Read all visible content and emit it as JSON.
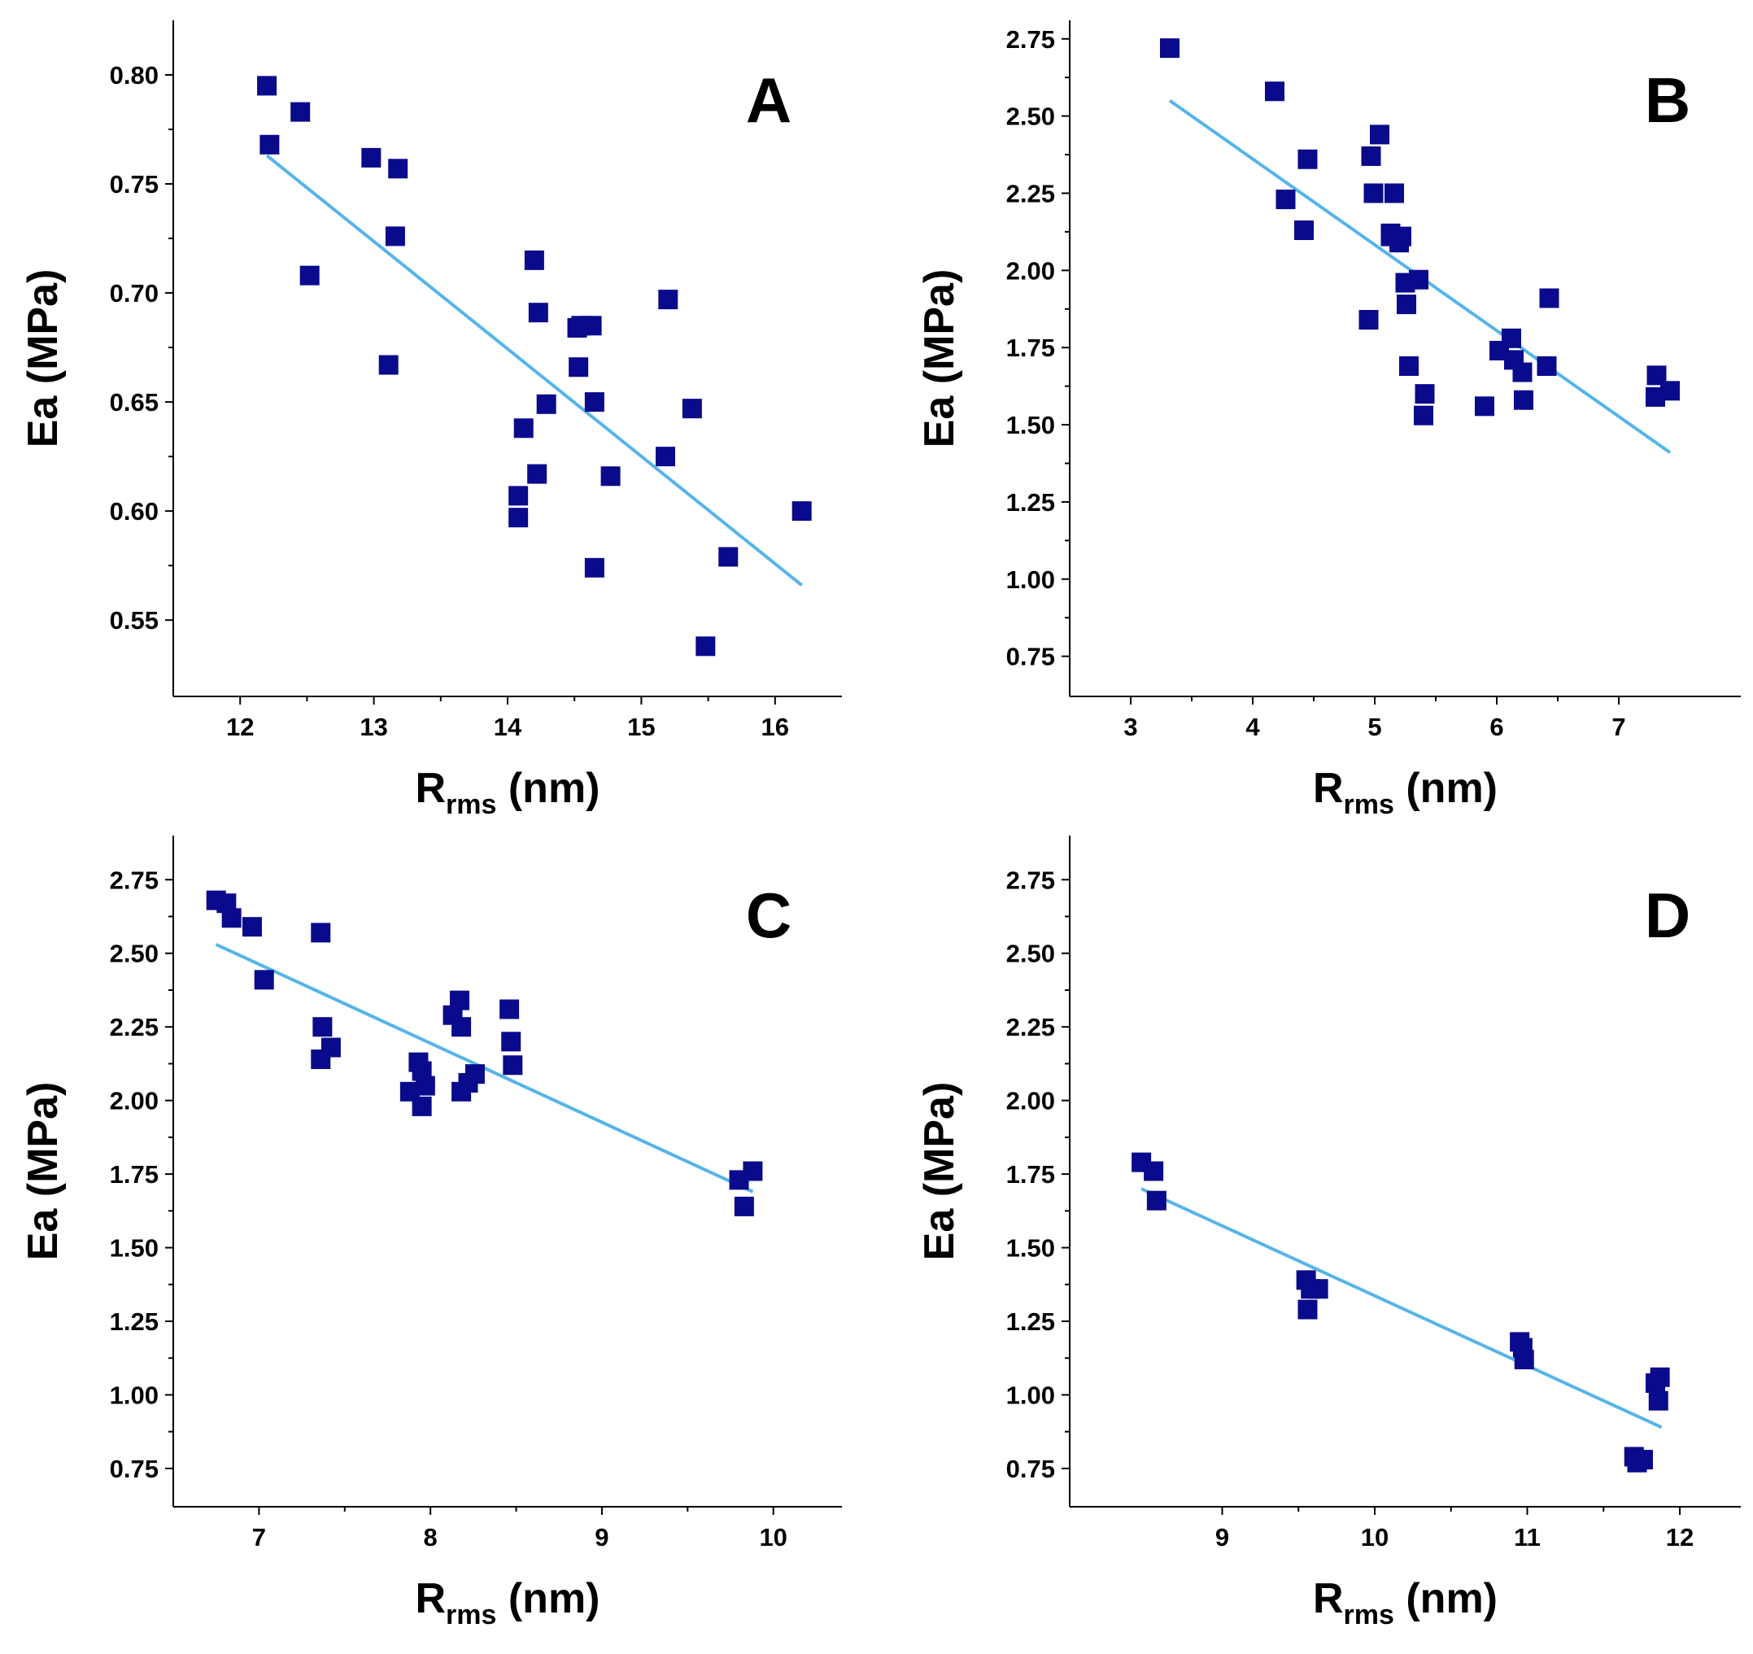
{
  "colors": {
    "marker": "#0a0a8c",
    "fit": "#56b4e9",
    "axis": "#000000"
  },
  "chart_data": [
    {
      "type": "scatter",
      "panel": "A",
      "xlabel_main": "R",
      "xlabel_sub": "rms",
      "xlabel_unit": " (nm)",
      "ylabel": "Ea (MPa)",
      "xlim": [
        11.5,
        16.5
      ],
      "ylim": [
        0.515,
        0.825
      ],
      "xticks": [
        12,
        13,
        14,
        15,
        16
      ],
      "xtick_labels": [
        "12",
        "13",
        "14",
        "15",
        "16"
      ],
      "yticks": [
        0.55,
        0.6,
        0.65,
        0.7,
        0.75,
        0.8
      ],
      "ytick_labels": [
        "0.55",
        "0.60",
        "0.65",
        "0.70",
        "0.75",
        "0.80"
      ],
      "x": [
        12.2,
        12.22,
        12.45,
        12.52,
        12.98,
        13.18,
        13.16,
        13.11,
        14.2,
        14.23,
        14.12,
        14.08,
        14.08,
        14.22,
        14.29,
        14.52,
        14.55,
        14.63,
        14.53,
        14.65,
        14.65,
        14.77,
        15.2,
        15.18,
        15.38,
        15.48,
        15.65,
        16.2
      ],
      "y": [
        0.795,
        0.768,
        0.783,
        0.708,
        0.762,
        0.757,
        0.726,
        0.667,
        0.715,
        0.691,
        0.638,
        0.607,
        0.597,
        0.617,
        0.649,
        0.684,
        0.685,
        0.685,
        0.666,
        0.65,
        0.574,
        0.616,
        0.697,
        0.625,
        0.647,
        0.538,
        0.579,
        0.6
      ],
      "fit": {
        "x": [
          12.2,
          16.2
        ],
        "y": [
          0.763,
          0.566
        ]
      }
    },
    {
      "type": "scatter",
      "panel": "B",
      "xlabel_main": "R",
      "xlabel_sub": "rms",
      "xlabel_unit": " (nm)",
      "ylabel": "Ea (MPa)",
      "xlim": [
        2.5,
        8.0
      ],
      "ylim": [
        0.62,
        2.81
      ],
      "xticks": [
        3,
        4,
        5,
        6,
        7
      ],
      "xtick_labels": [
        "3",
        "4",
        "5",
        "6",
        "7"
      ],
      "yticks": [
        0.75,
        1.0,
        1.25,
        1.5,
        1.75,
        2.0,
        2.25,
        2.5,
        2.75
      ],
      "ytick_labels": [
        "0.75",
        "1.00",
        "1.25",
        "1.50",
        "1.75",
        "2.00",
        "2.25",
        "2.50",
        "2.75"
      ],
      "x": [
        3.32,
        4.18,
        4.27,
        4.42,
        4.45,
        4.95,
        4.97,
        4.99,
        5.04,
        5.13,
        5.16,
        5.13,
        5.2,
        5.22,
        5.25,
        5.26,
        5.36,
        5.4,
        4.95,
        5.28,
        5.41,
        5.9,
        6.02,
        6.12,
        6.14,
        6.21,
        6.22,
        6.41,
        6.43,
        7.3,
        7.31,
        7.42
      ],
      "y": [
        2.72,
        2.58,
        2.23,
        2.13,
        2.36,
        1.84,
        2.37,
        2.25,
        2.44,
        2.11,
        2.25,
        2.12,
        2.09,
        2.11,
        1.96,
        1.89,
        1.97,
        1.53,
        1.84,
        1.69,
        1.6,
        1.56,
        1.74,
        1.78,
        1.71,
        1.67,
        1.58,
        1.69,
        1.91,
        1.59,
        1.66,
        1.61
      ],
      "fit": {
        "x": [
          3.32,
          7.42
        ],
        "y": [
          2.55,
          1.41
        ]
      }
    },
    {
      "type": "scatter",
      "panel": "C",
      "xlabel_main": "R",
      "xlabel_sub": "rms",
      "xlabel_unit": " (nm)",
      "ylabel": "Ea (MPa)",
      "xlim": [
        6.5,
        10.4
      ],
      "ylim": [
        0.62,
        2.9
      ],
      "xticks": [
        7,
        8,
        9,
        10
      ],
      "xtick_labels": [
        "7",
        "8",
        "9",
        "10"
      ],
      "yticks": [
        0.75,
        1.0,
        1.25,
        1.5,
        1.75,
        2.0,
        2.25,
        2.5,
        2.75
      ],
      "ytick_labels": [
        "0.75",
        "1.00",
        "1.25",
        "1.50",
        "1.75",
        "2.00",
        "2.25",
        "2.50",
        "2.75"
      ],
      "x": [
        6.75,
        6.81,
        6.84,
        6.96,
        7.03,
        7.36,
        7.37,
        7.36,
        7.42,
        7.88,
        7.93,
        7.95,
        7.97,
        7.95,
        8.13,
        8.17,
        8.18,
        8.18,
        8.22,
        8.26,
        8.46,
        8.47,
        8.48,
        9.8,
        9.83,
        9.88
      ],
      "y": [
        2.68,
        2.67,
        2.62,
        2.59,
        2.41,
        2.57,
        2.25,
        2.14,
        2.18,
        2.03,
        2.13,
        2.1,
        2.05,
        1.98,
        2.29,
        2.34,
        2.25,
        2.03,
        2.06,
        2.09,
        2.31,
        2.2,
        2.12,
        1.73,
        1.64,
        1.76
      ],
      "fit": {
        "x": [
          6.75,
          9.88
        ],
        "y": [
          2.53,
          1.69
        ]
      }
    },
    {
      "type": "scatter",
      "panel": "D",
      "xlabel_main": "R",
      "xlabel_sub": "rms",
      "xlabel_unit": " (nm)",
      "ylabel": "Ea (MPa)",
      "xlim": [
        8.0,
        12.4
      ],
      "ylim": [
        0.62,
        2.9
      ],
      "xticks": [
        9,
        10,
        11,
        12
      ],
      "xtick_labels": [
        "9",
        "10",
        "11",
        "12"
      ],
      "yticks": [
        0.75,
        1.0,
        1.25,
        1.5,
        1.75,
        2.0,
        2.25,
        2.5,
        2.75
      ],
      "ytick_labels": [
        "0.75",
        "1.00",
        "1.25",
        "1.50",
        "1.75",
        "2.00",
        "2.25",
        "2.50",
        "2.75"
      ],
      "x": [
        8.47,
        8.55,
        8.57,
        9.55,
        9.58,
        9.63,
        9.56,
        10.95,
        10.97,
        10.98,
        11.7,
        11.72,
        11.76,
        11.84,
        11.87,
        11.86
      ],
      "y": [
        1.79,
        1.76,
        1.66,
        1.39,
        1.36,
        1.36,
        1.29,
        1.18,
        1.16,
        1.12,
        0.79,
        0.77,
        0.78,
        1.04,
        1.06,
        0.98
      ],
      "fit": {
        "x": [
          8.47,
          11.88
        ],
        "y": [
          1.7,
          0.89
        ]
      }
    }
  ]
}
